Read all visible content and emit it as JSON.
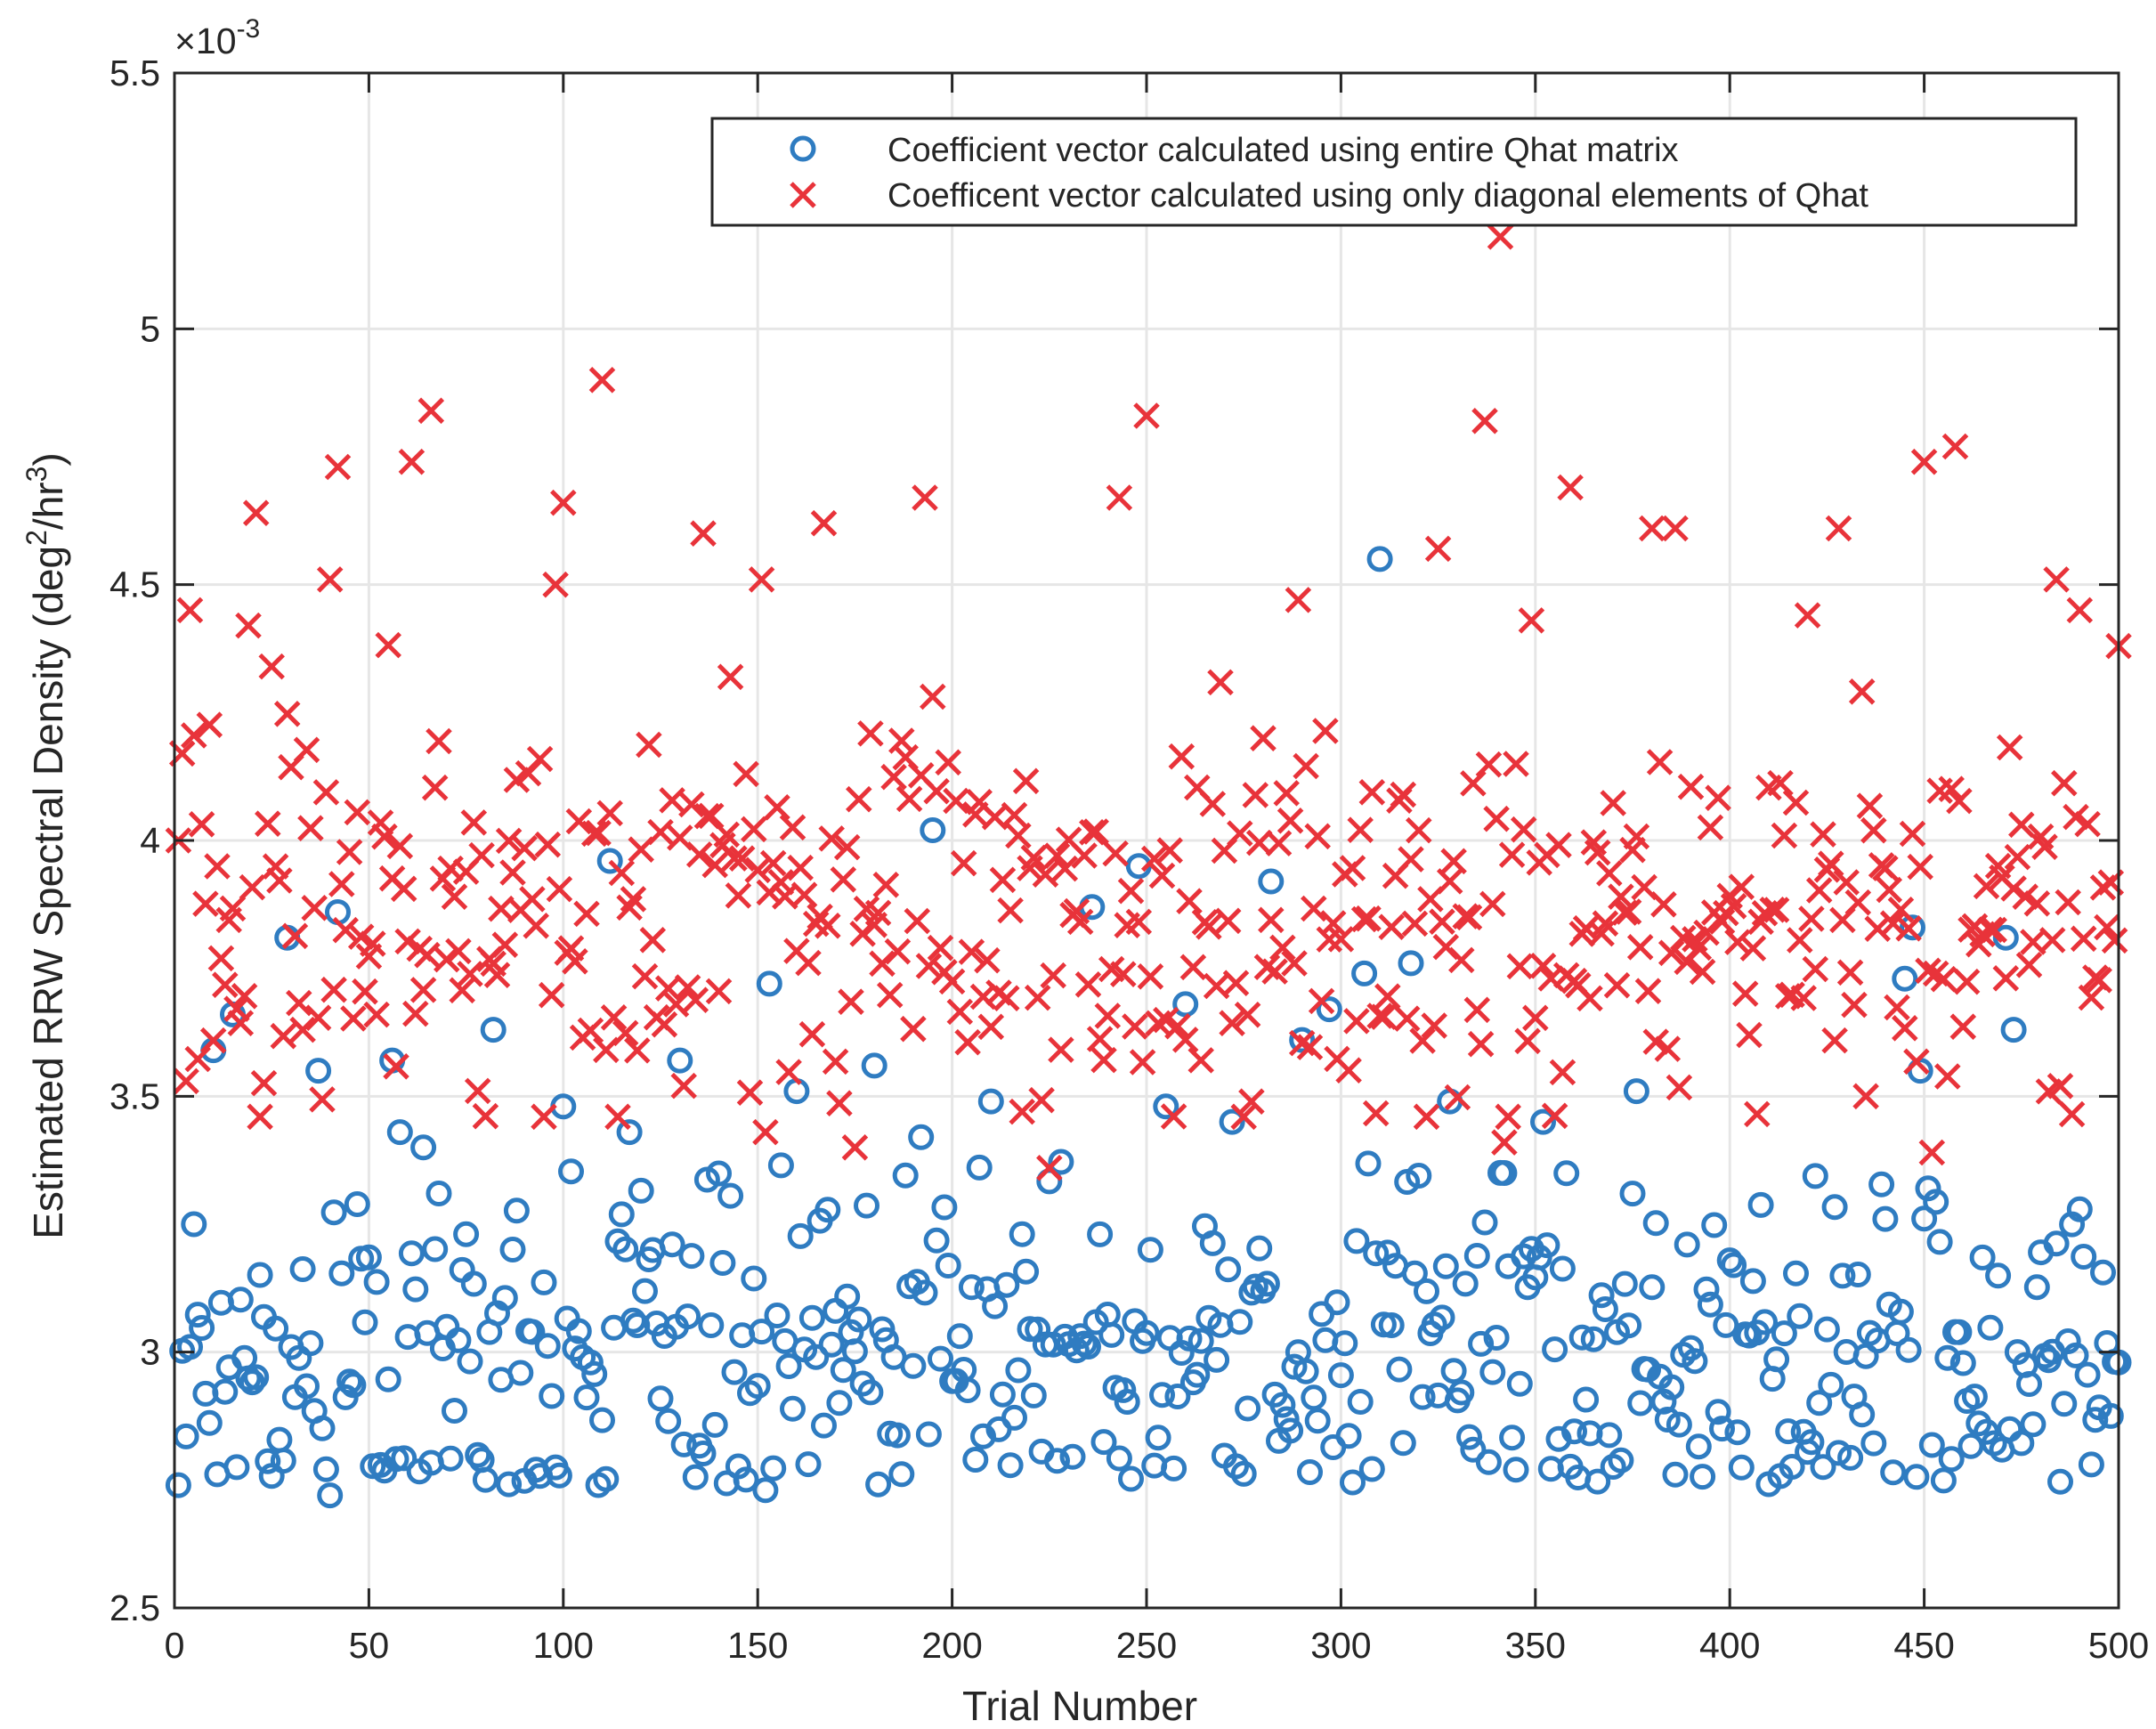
{
  "chart_data": {
    "type": "scatter",
    "xlabel": "Trial Number",
    "ylabel": "Estimated RRW Spectral Density (deg",
    "ylabel_sup1": "2",
    "ylabel_mid": "/hr",
    "ylabel_sup2": "3",
    "ylabel_end": ")",
    "y_exponent": "×10",
    "y_exponent_power": "-3",
    "xlim": [
      0,
      500
    ],
    "ylim": [
      2.5,
      5.5
    ],
    "x_ticks": [
      0,
      50,
      100,
      150,
      200,
      250,
      300,
      350,
      400,
      450,
      500
    ],
    "y_ticks": [
      2.5,
      3,
      3.5,
      4,
      4.5,
      5,
      5.5
    ],
    "x_tick_labels": [
      "0",
      "50",
      "100",
      "150",
      "200",
      "250",
      "300",
      "350",
      "400",
      "450",
      "500"
    ],
    "y_tick_labels": [
      "2.5",
      "3",
      "3.5",
      "4",
      "4.5",
      "5",
      "5.5"
    ],
    "grid": true,
    "legend_position": "top-right",
    "series": [
      {
        "name": "Coefficient vector calculated using entire Qhat matrix",
        "marker": "circle",
        "color": "#2f7cc1",
        "n_points": 500,
        "seed": 17,
        "distribution": "mostly 2.73–3.35, clustered near 2.75–3.05",
        "notable_points": [
          [
            1,
            2.74
          ],
          [
            4,
            3.01
          ],
          [
            5,
            3.25
          ],
          [
            10,
            3.59
          ],
          [
            15,
            3.66
          ],
          [
            29,
            3.81
          ],
          [
            37,
            3.55
          ],
          [
            40,
            2.72
          ],
          [
            42,
            3.86
          ],
          [
            56,
            3.57
          ],
          [
            58,
            3.43
          ],
          [
            64,
            3.4
          ],
          [
            68,
            3.31
          ],
          [
            82,
            3.63
          ],
          [
            100,
            3.48
          ],
          [
            112,
            3.96
          ],
          [
            117,
            3.43
          ],
          [
            130,
            3.57
          ],
          [
            153,
            3.72
          ],
          [
            152,
            2.73
          ],
          [
            160,
            3.51
          ],
          [
            180,
            3.56
          ],
          [
            192,
            3.42
          ],
          [
            195,
            4.02
          ],
          [
            210,
            3.49
          ],
          [
            236,
            3.87
          ],
          [
            248,
            3.95
          ],
          [
            255,
            3.48
          ],
          [
            260,
            3.68
          ],
          [
            272,
            3.45
          ],
          [
            282,
            3.92
          ],
          [
            290,
            3.61
          ],
          [
            297,
            3.67
          ],
          [
            306,
            3.74
          ],
          [
            310,
            4.55
          ],
          [
            318,
            3.76
          ],
          [
            328,
            3.49
          ],
          [
            342,
            3.35
          ],
          [
            352,
            3.45
          ],
          [
            376,
            3.51
          ],
          [
            445,
            3.73
          ],
          [
            447,
            3.83
          ],
          [
            449,
            3.55
          ],
          [
            451,
            3.32
          ],
          [
            471,
            3.81
          ],
          [
            473,
            3.63
          ],
          [
            500,
            2.98
          ]
        ]
      },
      {
        "name": "Coefficent vector calculated using only diagonal elements of Qhat",
        "marker": "x",
        "color": "#e8333a",
        "n_points": 500,
        "seed": 91,
        "distribution": "mostly 3.55–4.15, centered near 3.8",
        "notable_points": [
          [
            1,
            4.0
          ],
          [
            2,
            4.17
          ],
          [
            4,
            4.45
          ],
          [
            19,
            4.42
          ],
          [
            21,
            4.64
          ],
          [
            25,
            4.34
          ],
          [
            40,
            4.51
          ],
          [
            42,
            4.73
          ],
          [
            61,
            4.74
          ],
          [
            66,
            4.84
          ],
          [
            98,
            4.5
          ],
          [
            100,
            4.66
          ],
          [
            110,
            4.9
          ],
          [
            136,
            4.6
          ],
          [
            151,
            4.51
          ],
          [
            152,
            3.43
          ],
          [
            167,
            4.62
          ],
          [
            175,
            3.4
          ],
          [
            193,
            4.67
          ],
          [
            218,
            3.47
          ],
          [
            225,
            3.36
          ],
          [
            243,
            4.67
          ],
          [
            250,
            4.83
          ],
          [
            289,
            4.47
          ],
          [
            325,
            4.57
          ],
          [
            337,
            4.82
          ],
          [
            341,
            5.18
          ],
          [
            342,
            3.41
          ],
          [
            349,
            4.43
          ],
          [
            359,
            4.69
          ],
          [
            380,
            4.61
          ],
          [
            386,
            4.61
          ],
          [
            420,
            4.44
          ],
          [
            428,
            4.61
          ],
          [
            435,
            3.5
          ],
          [
            450,
            4.74
          ],
          [
            452,
            3.39
          ],
          [
            458,
            4.77
          ],
          [
            484,
            4.51
          ],
          [
            485,
            3.52
          ],
          [
            490,
            4.45
          ],
          [
            500,
            4.38
          ]
        ]
      }
    ]
  }
}
